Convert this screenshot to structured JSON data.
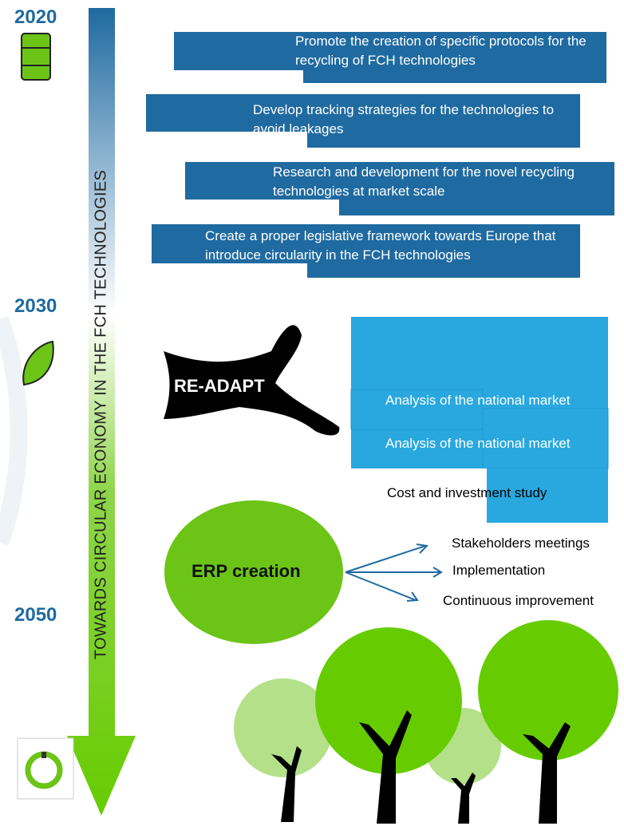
{
  "years": [
    "2020",
    "2030",
    "2050"
  ],
  "timeline_label": "TOWARDS CIRCULAR ECONOMY IN THE FCH TECHNOLOGIES",
  "actions": [
    "Promote the creation of specific protocols for the recycling of FCH technologies",
    "Develop tracking strategies for the technologies to avoid leakages",
    "Research and development for the novel recycling technologies at market scale",
    "Create a proper legislative framework towards Europe that introduce circularity in the FCH technologies"
  ],
  "re_adapt": "RE-ADAPT",
  "analyses": [
    "Analysis of the national market",
    "Analysis of the national market",
    "Cost and investment study"
  ],
  "erp": {
    "title": "ERP creation",
    "steps": [
      "Stakeholders meetings",
      "Implementation",
      "Continuous improvement"
    ]
  }
}
